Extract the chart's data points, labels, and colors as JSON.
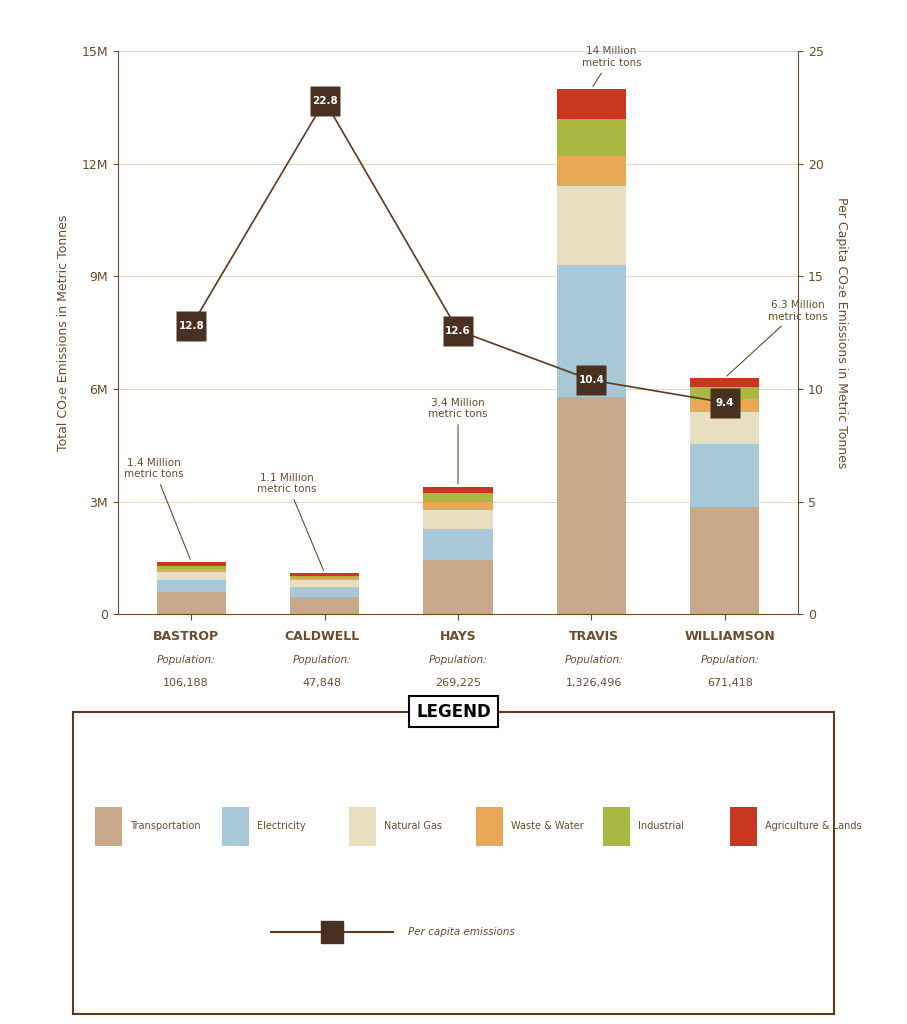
{
  "counties": [
    "BASTROP",
    "CALDWELL",
    "HAYS",
    "TRAVIS",
    "WILLIAMSON"
  ],
  "populations": [
    "106,188",
    "47,848",
    "269,225",
    "1,326,496",
    "671,418"
  ],
  "total_labels": [
    "1.4 Million\nmetric tons",
    "1.1 Million\nmetric tons",
    "3.4 Million\nmetric tons",
    "14 Million\nmetric tons",
    "6.3 Million\nmetric tons"
  ],
  "total_values_M": [
    1.4,
    1.1,
    3.4,
    14.0,
    6.3
  ],
  "per_capita": [
    12.8,
    22.8,
    12.6,
    10.4,
    9.4
  ],
  "bar_data": {
    "Transportation": [
      0.6,
      0.47,
      1.45,
      5.8,
      2.85
    ],
    "Electricity": [
      0.32,
      0.26,
      0.82,
      3.5,
      1.7
    ],
    "Natural Gas": [
      0.2,
      0.18,
      0.5,
      2.1,
      0.85
    ],
    "Waste & Water": [
      0.09,
      0.07,
      0.22,
      0.8,
      0.35
    ],
    "Industrial": [
      0.07,
      0.05,
      0.24,
      1.0,
      0.3
    ],
    "Agriculture & Lands": [
      0.12,
      0.07,
      0.17,
      0.8,
      0.25
    ]
  },
  "colors": {
    "Transportation": "#C9A98A",
    "Electricity": "#A8C8D8",
    "Natural Gas": "#E8DFC0",
    "Waste & Water": "#E8A855",
    "Industrial": "#A8B840",
    "Agriculture & Lands": "#C83820"
  },
  "fig_bg": "#FFFFFF",
  "chart_bg": "#FFFFFF",
  "text_color": "#6B4C2A",
  "axis_color": "#6B4C2A",
  "per_capita_line_color": "#5C3A20",
  "per_capita_marker_bg": "#4A3020",
  "ylim_left": [
    0,
    15000000
  ],
  "ylim_right": [
    0,
    25
  ],
  "yticks_left": [
    0,
    3000000,
    6000000,
    9000000,
    12000000,
    15000000
  ],
  "yticks_right": [
    0,
    5,
    10,
    15,
    20,
    25
  ],
  "ylabel_left": "Total CO₂e Emissions in Metric Tonnes",
  "ylabel_right": "Per Capita CO₂e Emissions in Metric Tonnes",
  "legend_categories": [
    "Transportation",
    "Electricity",
    "Natural Gas",
    "Waste & Water",
    "Industrial",
    "Agriculture & Lands"
  ],
  "bar_width": 0.52,
  "label_positions": {
    "x_adj": [
      -0.28,
      -0.28,
      0.0,
      0.15,
      0.55
    ],
    "y_M": [
      3.6,
      3.2,
      5.2,
      14.55,
      7.8
    ]
  }
}
